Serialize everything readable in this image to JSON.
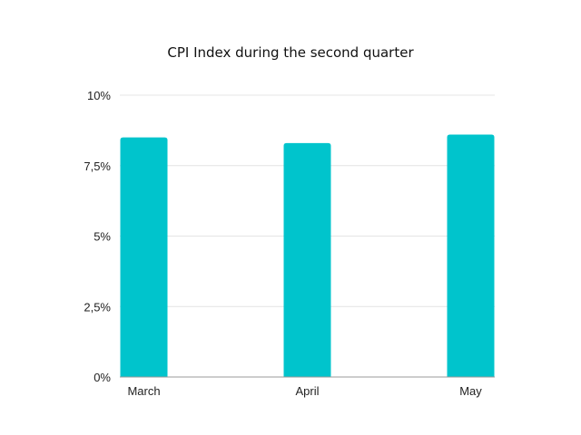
{
  "chart_data": {
    "type": "bar",
    "title": "CPI Index during the second quarter",
    "xlabel": "",
    "ylabel": "",
    "categories": [
      "March",
      "April",
      "May"
    ],
    "values": [
      8.5,
      8.3,
      8.6
    ],
    "ylim": [
      0,
      10
    ],
    "yticks": [
      0,
      2.5,
      5,
      7.5,
      10
    ],
    "ytick_labels": [
      "0%",
      "2,5%",
      "5%",
      "7,5%",
      "10%"
    ],
    "grid": true,
    "legend": "none",
    "bar_color": "#00C4CC"
  }
}
